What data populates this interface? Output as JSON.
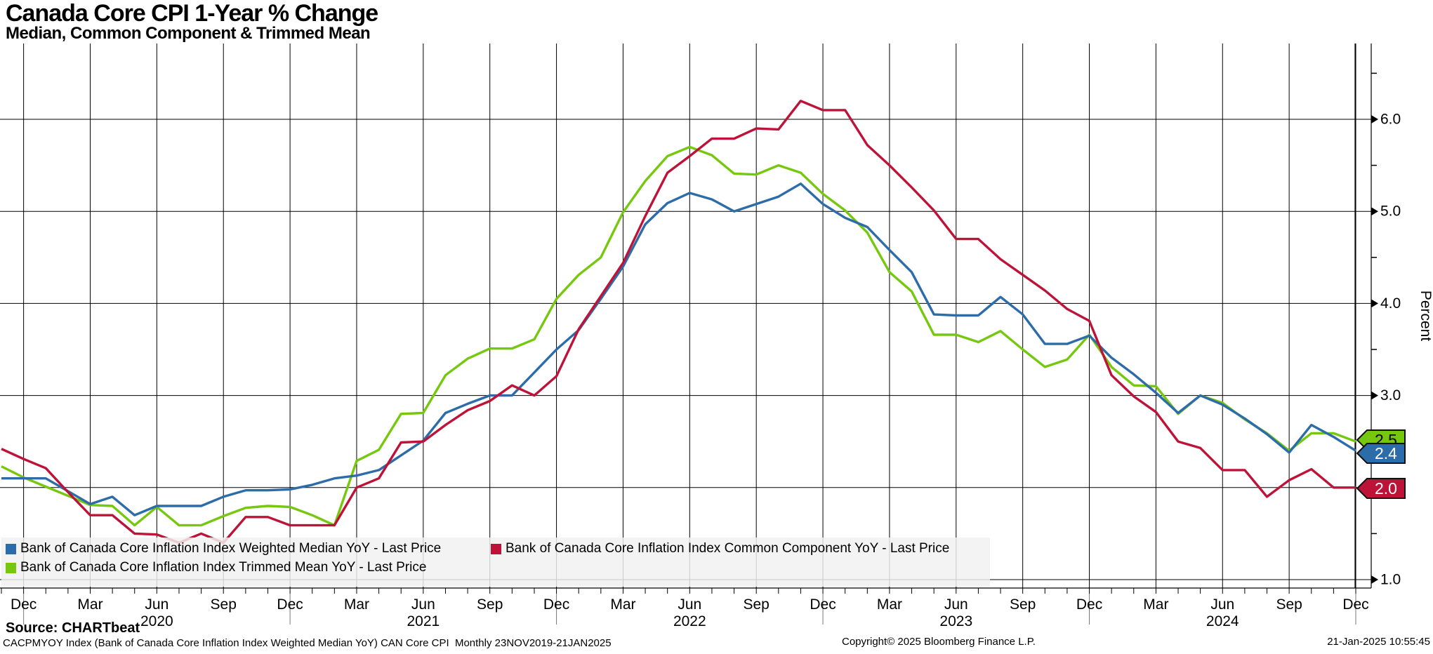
{
  "header": {
    "title": "Canada Core CPI 1-Year % Change",
    "subtitle": "Median, Common Component & Trimmed Mean"
  },
  "colors": {
    "median": "#2c6ca9",
    "common": "#be1338",
    "trimmed": "#76c80e",
    "grid": "#000000",
    "legend_bg": "#f1f1f1",
    "year_divider": "#777777"
  },
  "legend": {
    "items": [
      {
        "key": "median",
        "label": "Bank of Canada Core Inflation Index Weighted Median YoY - Last Price"
      },
      {
        "key": "common",
        "label": "Bank of Canada Core Inflation Index Common Component YoY - Last Price"
      },
      {
        "key": "trimmed",
        "label": "Bank of Canada Core Inflation Index Trimmed Mean YoY - Last Price"
      }
    ]
  },
  "y_axis": {
    "label": "Percent",
    "major_ticks": [
      "1.0",
      "2.0",
      "3.0",
      "4.0",
      "5.0",
      "6.0"
    ],
    "major_values": [
      1.0,
      2.0,
      3.0,
      4.0,
      5.0,
      6.0
    ],
    "minor_values": [
      1.5,
      2.5,
      3.5,
      4.5,
      5.5,
      6.5
    ],
    "min": 1.0,
    "max": 6.5,
    "side": "right"
  },
  "x_axis": {
    "quarter_labels": [
      "Dec",
      "Mar",
      "Jun",
      "Sep",
      "Dec",
      "Mar",
      "Jun",
      "Sep",
      "Dec",
      "Mar",
      "Jun",
      "Sep",
      "Dec",
      "Mar",
      "Jun",
      "Sep",
      "Dec",
      "Mar",
      "Jun",
      "Sep",
      "Dec"
    ],
    "year_labels": [
      "2020",
      "2021",
      "2022",
      "2023",
      "2024"
    ]
  },
  "badges": [
    {
      "label": "2.5",
      "series": "trimmed",
      "value": 2.5,
      "text_color": "#000000"
    },
    {
      "label": "2.4",
      "series": "median",
      "value": 2.4,
      "text_color": "#ffffff"
    },
    {
      "label": "2.0",
      "series": "common",
      "value": 2.0,
      "text_color": "#ffffff"
    }
  ],
  "footer": {
    "source": "Source: CHARTbeat",
    "meta": "CACPMYOY Index (Bank of Canada Core Inflation Index Weighted Median YoY) CAN Core CPI  Monthly 23NOV2019-21JAN2025",
    "copyright": "Copyright© 2025 Bloomberg Finance L.P.",
    "datetime": "21-Jan-2025 10:55:45"
  },
  "chart_data": {
    "type": "line",
    "title": "Canada Core CPI 1-Year % Change",
    "subtitle": "Median, Common Component & Trimmed Mean",
    "ylabel": "Percent",
    "ylim": [
      1.0,
      6.5
    ],
    "grid": "on",
    "legend_position": "bottom-left",
    "x_start": "2019-11",
    "x_end": "2024-12",
    "x_freq": "monthly",
    "series": [
      {
        "name": "Bank of Canada Core Inflation Index Weighted Median YoY - Last Price",
        "key": "median",
        "last": 2.4,
        "values": [
          2.1,
          2.1,
          2.1,
          1.96,
          1.82,
          1.9,
          1.7,
          1.8,
          1.8,
          1.8,
          1.9,
          1.97,
          1.97,
          1.98,
          2.03,
          2.1,
          2.13,
          2.19,
          2.35,
          2.51,
          2.81,
          2.91,
          3.0,
          3.0,
          3.25,
          3.5,
          3.71,
          4.05,
          4.4,
          4.86,
          5.09,
          5.2,
          5.13,
          5.0,
          5.08,
          5.16,
          5.3,
          5.08,
          4.93,
          4.83,
          4.58,
          4.34,
          3.88,
          3.87,
          3.87,
          4.07,
          3.88,
          3.56,
          3.56,
          3.65,
          3.41,
          3.23,
          3.03,
          2.81,
          3.0,
          2.9,
          2.75,
          2.58,
          2.38,
          2.68,
          2.55,
          2.4
        ]
      },
      {
        "name": "Bank of Canada Core Inflation Index Common Component YoY - Last Price",
        "key": "common",
        "last": 2.0,
        "values": [
          2.42,
          2.31,
          2.21,
          1.95,
          1.7,
          1.7,
          1.5,
          1.49,
          1.4,
          1.5,
          1.4,
          1.68,
          1.68,
          1.59,
          1.59,
          1.59,
          2.0,
          2.1,
          2.49,
          2.5,
          2.68,
          2.84,
          2.94,
          3.11,
          3.0,
          3.21,
          3.72,
          4.08,
          4.44,
          4.95,
          5.42,
          5.6,
          5.79,
          5.79,
          5.9,
          5.89,
          6.2,
          6.1,
          6.1,
          5.72,
          5.5,
          5.26,
          5.01,
          4.7,
          4.7,
          4.48,
          4.31,
          4.14,
          3.94,
          3.81,
          3.22,
          2.99,
          2.82,
          2.5,
          2.43,
          2.19,
          2.19,
          1.9,
          2.08,
          2.2,
          2.0,
          2.0
        ]
      },
      {
        "name": "Bank of Canada Core Inflation Index Trimmed Mean YoY - Last Price",
        "key": "trimmed",
        "last": 2.5,
        "values": [
          2.23,
          2.11,
          2.01,
          1.91,
          1.81,
          1.8,
          1.59,
          1.79,
          1.59,
          1.59,
          1.69,
          1.78,
          1.8,
          1.79,
          1.7,
          1.59,
          2.29,
          2.41,
          2.8,
          2.81,
          3.22,
          3.4,
          3.51,
          3.51,
          3.61,
          4.05,
          4.31,
          4.5,
          4.99,
          5.33,
          5.6,
          5.7,
          5.61,
          5.41,
          5.4,
          5.5,
          5.42,
          5.19,
          5.01,
          4.77,
          4.34,
          4.13,
          3.66,
          3.66,
          3.58,
          3.7,
          3.5,
          3.31,
          3.39,
          3.66,
          3.31,
          3.11,
          3.1,
          2.8,
          3.0,
          2.92,
          2.74,
          2.59,
          2.4,
          2.59,
          2.59,
          2.5
        ]
      }
    ]
  }
}
